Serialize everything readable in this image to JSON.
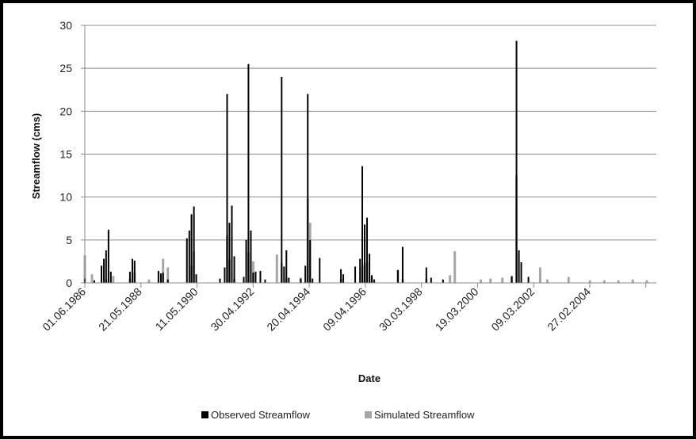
{
  "chart_data": {
    "type": "bar",
    "title": "",
    "xlabel": "Date",
    "ylabel": "Streamflow (cms)",
    "ylim": [
      0,
      30
    ],
    "xlim": [
      "1986-06-01",
      "2006-07-01"
    ],
    "yticks": [
      0,
      5,
      10,
      15,
      20,
      25,
      30
    ],
    "x_tick_labels": [
      "01.06.1986",
      "21.05.1988",
      "11.05.1990",
      "30.04.1992",
      "20.04.1994",
      "09.04.1996",
      "30.03.1998",
      "19.03.2000",
      "09.03.2002",
      "27.02.2004"
    ],
    "grid": true,
    "legend_position": "bottom",
    "series": [
      {
        "name": "Observed Streamflow",
        "color": "#000000",
        "x": [
          "1986-06-01",
          "1986-10-01",
          "1987-01-01",
          "1987-02-01",
          "1987-03-01",
          "1987-04-01",
          "1987-05-01",
          "1988-01-01",
          "1988-02-01",
          "1988-03-01",
          "1989-01-01",
          "1989-02-01",
          "1989-03-01",
          "1989-05-01",
          "1990-01-01",
          "1990-02-01",
          "1990-03-01",
          "1990-04-01",
          "1990-05-01",
          "1991-03-01",
          "1991-05-01",
          "1991-06-01",
          "1991-07-01",
          "1991-08-01",
          "1991-09-01",
          "1992-01-01",
          "1992-02-01",
          "1992-03-01",
          "1992-04-01",
          "1992-05-01",
          "1992-06-01",
          "1992-08-01",
          "1992-10-01",
          "1993-05-01",
          "1993-06-01",
          "1993-07-01",
          "1993-08-01",
          "1994-01-01",
          "1994-03-01",
          "1994-04-01",
          "1994-05-01",
          "1994-06-01",
          "1994-09-01",
          "1995-06-01",
          "1995-07-01",
          "1995-12-01",
          "1996-02-01",
          "1996-03-01",
          "1996-04-01",
          "1996-05-01",
          "1996-06-01",
          "1996-07-01",
          "1996-08-01",
          "1997-06-01",
          "1997-08-01",
          "1998-06-01",
          "1998-08-01",
          "1999-01-01",
          "2001-06-01",
          "2001-08-01",
          "2001-09-01",
          "2001-10-01",
          "2002-01-01"
        ],
        "values": [
          0.5,
          0.3,
          2,
          2.8,
          3.8,
          6.2,
          1.3,
          1.3,
          2.8,
          2.6,
          1.4,
          1.1,
          1.2,
          0.4,
          5.2,
          6.1,
          8,
          8.9,
          1,
          0.5,
          1.8,
          22,
          7,
          9,
          3.1,
          0.7,
          5,
          25.5,
          6.1,
          1.2,
          1.3,
          1.4,
          0.4,
          24,
          1.9,
          3.8,
          0.6,
          0.5,
          2,
          22,
          5,
          0.5,
          2.9,
          1.6,
          1,
          1.9,
          2.8,
          13.6,
          6.8,
          7.6,
          3.4,
          0.9,
          0.4,
          1.5,
          4.2,
          1.8,
          0.6,
          0.4,
          0.8,
          28.2,
          3.8,
          2.4,
          0.7
        ]
      },
      {
        "name": "Simulated Streamflow",
        "color": "#a6a6a6",
        "x": [
          "1986-06-01",
          "1986-09-01",
          "1987-03-01",
          "1987-06-01",
          "1988-01-01",
          "1988-03-01",
          "1988-09-01",
          "1989-03-01",
          "1989-05-01",
          "1990-03-01",
          "1990-04-01",
          "1991-06-01",
          "1991-07-01",
          "1991-09-01",
          "1992-03-01",
          "1992-05-01",
          "1993-03-01",
          "1993-05-01",
          "1993-07-01",
          "1994-01-01",
          "1994-04-01",
          "1994-05-01",
          "1995-06-01",
          "1996-03-01",
          "1996-04-01",
          "1996-05-01",
          "1996-07-01",
          "1997-06-01",
          "1997-08-01",
          "1998-06-01",
          "1999-04-01",
          "1999-06-01",
          "2000-05-01",
          "2000-09-01",
          "2001-02-01",
          "2001-06-01",
          "2001-08-01",
          "2002-06-01",
          "2002-09-01",
          "2003-06-01",
          "2004-03-01",
          "2004-09-01",
          "2005-03-01",
          "2005-09-01",
          "2006-03-01"
        ],
        "values": [
          3.2,
          1,
          0.5,
          0.8,
          0.5,
          1.2,
          0.4,
          2.8,
          1.8,
          2,
          3.7,
          5.5,
          2.7,
          0.5,
          3.6,
          2.5,
          3.3,
          2.3,
          0.6,
          0.6,
          9.8,
          7,
          0.5,
          1.9,
          2.3,
          2.4,
          0.6,
          1.5,
          0.5,
          0.5,
          0.9,
          3.7,
          0.4,
          0.5,
          0.6,
          0.7,
          12.5,
          1.8,
          0.4,
          0.7,
          0.3,
          0.3,
          0.3,
          0.4,
          0.3
        ]
      }
    ]
  }
}
